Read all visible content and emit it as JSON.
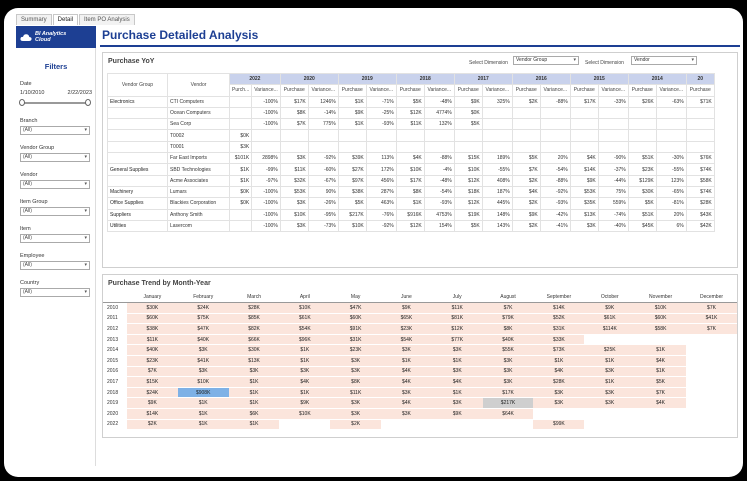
{
  "tabs": [
    "Summary",
    "Detail",
    "Item PO Analysis"
  ],
  "brand": {
    "text": "BI Analytics\nCloud",
    "color": "#1d3f93"
  },
  "page_title": "Purchase Detailed Analysis",
  "sidebar": {
    "title": "Filters",
    "date": {
      "label": "Date",
      "start": "1/10/2010",
      "end": "2/22/2023"
    },
    "filters": [
      {
        "label": "Branch",
        "value": "(All)"
      },
      {
        "label": "Vendor Group",
        "value": "(All)"
      },
      {
        "label": "Vendor",
        "value": "(All)"
      },
      {
        "label": "Item Group",
        "value": "(All)"
      },
      {
        "label": "Item",
        "value": "(All)"
      },
      {
        "label": "Employee",
        "value": "(All)"
      },
      {
        "label": "Country",
        "value": "(All)"
      }
    ]
  },
  "yoy": {
    "title": "Purchase YoY",
    "dim1_label": "Select Dimension",
    "dim1_value": "Vendor Group",
    "dim2_label": "Select Dimension",
    "dim2_value": "Vendor",
    "col_group": "Vendor Group",
    "col_vendor": "Vendor",
    "years": [
      "2022",
      "2020",
      "2019",
      "2018",
      "2017",
      "2016",
      "2015",
      "2014",
      "20"
    ],
    "subheaders": [
      "Purch...",
      "Variance...",
      "Purchase",
      "Variance...",
      "Purchase",
      "Variance...",
      "Purchase",
      "Variance...",
      "Purchase",
      "Variance...",
      "Purchase",
      "Variance...",
      "Purchase",
      "Variance...",
      "Purchase",
      "Variance...",
      "Purchase"
    ],
    "rows": [
      {
        "group": "Electronics",
        "vendor": "CTI Computers",
        "cells": [
          "",
          "-100%",
          "$17K",
          "1246%",
          "$1K",
          "-71%",
          "$5K",
          "-48%",
          "$9K",
          "325%",
          "$2K",
          "-88%",
          "$17K",
          "-33%",
          "$26K",
          "-63%",
          "$71K"
        ]
      },
      {
        "group": "",
        "vendor": "Ocean Computers",
        "cells": [
          "",
          "-100%",
          "$8K",
          "-14%",
          "$9K",
          "-25%",
          "$12K",
          "4774%",
          "$0K",
          "",
          "",
          "",
          "",
          "",
          "",
          "",
          ""
        ]
      },
      {
        "group": "",
        "vendor": "Sea Corp",
        "cells": [
          "",
          "-100%",
          "$7K",
          "775%",
          "$1K",
          "-93%",
          "$11K",
          "132%",
          "$5K",
          "",
          "",
          "",
          "",
          "",
          "",
          "",
          ""
        ]
      },
      {
        "group": "",
        "vendor": "T0002",
        "cells": [
          "$0K",
          "",
          "",
          "",
          "",
          "",
          "",
          "",
          "",
          "",
          "",
          "",
          "",
          "",
          "",
          "",
          ""
        ]
      },
      {
        "group": "",
        "vendor": "T0001",
        "cells": [
          "$3K",
          "",
          "",
          "",
          "",
          "",
          "",
          "",
          "",
          "",
          "",
          "",
          "",
          "",
          "",
          "",
          ""
        ]
      },
      {
        "group": "",
        "vendor": "Far East Imports",
        "cells": [
          "$101K",
          "2898%",
          "$3K",
          "-92%",
          "$39K",
          "113%",
          "$4K",
          "-88%",
          "$15K",
          "189%",
          "$5K",
          "20%",
          "$4K",
          "-90%",
          "$51K",
          "-30%",
          "$76K"
        ]
      },
      {
        "group": "General Supplies",
        "vendor": "SBD Technologies",
        "cells": [
          "$1K",
          "-99%",
          "$11K",
          "-60%",
          "$27K",
          "172%",
          "$10K",
          "-4%",
          "$10K",
          "-55%",
          "$7K",
          "-54%",
          "$14K",
          "-37%",
          "$23K",
          "-55%",
          "$74K"
        ]
      },
      {
        "group": "",
        "vendor": "Acme Associates",
        "cells": [
          "$1K",
          "-97%",
          "$32K",
          "-67%",
          "$97K",
          "456%",
          "$17K",
          "-48%",
          "$12K",
          "408%",
          "$2K",
          "-88%",
          "$9K",
          "-44%",
          "$129K",
          "123%",
          "$58K"
        ]
      },
      {
        "group": "Machinery",
        "vendor": "Lumars",
        "cells": [
          "$0K",
          "-100%",
          "$53K",
          "90%",
          "$38K",
          "287%",
          "$8K",
          "-54%",
          "$18K",
          "187%",
          "$4K",
          "-92%",
          "$53K",
          "75%",
          "$30K",
          "-65%",
          "$74K"
        ]
      },
      {
        "group": "Office Supplies",
        "vendor": "Blackies Corporation",
        "cells": [
          "$0K",
          "-100%",
          "$3K",
          "-26%",
          "$5K",
          "463%",
          "$1K",
          "-93%",
          "$12K",
          "445%",
          "$2K",
          "-93%",
          "$35K",
          "559%",
          "$5K",
          "-81%",
          "$28K"
        ]
      },
      {
        "group": "Suppliers",
        "vendor": "Anthony Smith",
        "cells": [
          "",
          "-100%",
          "$10K",
          "-95%",
          "$217K",
          "-76%",
          "$916K",
          "4753%",
          "$19K",
          "148%",
          "$9K",
          "-42%",
          "$13K",
          "-74%",
          "$51K",
          "20%",
          "$43K"
        ]
      },
      {
        "group": "Utilities",
        "vendor": "Lasercom",
        "cells": [
          "",
          "-100%",
          "$3K",
          "-73%",
          "$10K",
          "-92%",
          "$12K",
          "154%",
          "$5K",
          "143%",
          "$2K",
          "-41%",
          "$3K",
          "-40%",
          "$45K",
          "6%",
          "$42K"
        ]
      }
    ]
  },
  "trend": {
    "title": "Purchase Trend by Month-Year",
    "months": [
      "January",
      "February",
      "March",
      "April",
      "May",
      "June",
      "July",
      "August",
      "September",
      "October",
      "November",
      "December"
    ],
    "rows": [
      {
        "year": "2010",
        "vals": [
          "$30K",
          "$24K",
          "$28K",
          "$10K",
          "$47K",
          "$9K",
          "$11K",
          "$7K",
          "$14K",
          "$9K",
          "$10K",
          "$7K"
        ]
      },
      {
        "year": "2011",
        "vals": [
          "$60K",
          "$75K",
          "$85K",
          "$61K",
          "$60K",
          "$65K",
          "$81K",
          "$79K",
          "$52K",
          "$61K",
          "$60K",
          "$41K"
        ]
      },
      {
        "year": "2012",
        "vals": [
          "$38K",
          "$47K",
          "$82K",
          "$54K",
          "$91K",
          "$23K",
          "$12K",
          "$8K",
          "$31K",
          "$114K",
          "$58K",
          "$7K"
        ]
      },
      {
        "year": "2013",
        "vals": [
          "$11K",
          "$40K",
          "$66K",
          "$96K",
          "$31K",
          "$54K",
          "$77K",
          "$40K",
          "$33K",
          "",
          "",
          ""
        ]
      },
      {
        "year": "2014",
        "vals": [
          "$40K",
          "$3K",
          "$30K",
          "$1K",
          "$23K",
          "$3K",
          "$3K",
          "$55K",
          "$73K",
          "$25K",
          "$1K",
          ""
        ]
      },
      {
        "year": "2015",
        "vals": [
          "$23K",
          "$41K",
          "$13K",
          "$1K",
          "$3K",
          "$1K",
          "$1K",
          "$3K",
          "$1K",
          "$1K",
          "$4K",
          ""
        ]
      },
      {
        "year": "2016",
        "vals": [
          "$7K",
          "$3K",
          "$3K",
          "$3K",
          "$3K",
          "$4K",
          "$3K",
          "$3K",
          "$4K",
          "$3K",
          "$1K",
          ""
        ]
      },
      {
        "year": "2017",
        "vals": [
          "$15K",
          "$10K",
          "$1K",
          "$4K",
          "$8K",
          "$4K",
          "$4K",
          "$3K",
          "$28K",
          "$1K",
          "$5K",
          ""
        ]
      },
      {
        "year": "2018",
        "vals": [
          "$24K",
          "$908K",
          "$1K",
          "$1K",
          "$11K",
          "$3K",
          "$1K",
          "$17K",
          "$3K",
          "$3K",
          "$7K",
          ""
        ]
      },
      {
        "year": "2019",
        "vals": [
          "$9K",
          "$1K",
          "$1K",
          "$9K",
          "$3K",
          "$4K",
          "$3K",
          "$217K",
          "$3K",
          "$3K",
          "$4K",
          ""
        ]
      },
      {
        "year": "2020",
        "vals": [
          "$14K",
          "$1K",
          "$6K",
          "$10K",
          "$3K",
          "$3K",
          "$9K",
          "$64K",
          "",
          "",
          "",
          ""
        ]
      },
      {
        "year": "2022",
        "vals": [
          "$2K",
          "$1K",
          "$1K",
          "",
          "$2K",
          "",
          "",
          "",
          "$99K",
          "",
          "",
          ""
        ]
      }
    ],
    "highlight": {
      "2018": [
        1
      ]
    },
    "gray": {
      "2019": [
        7
      ]
    }
  }
}
